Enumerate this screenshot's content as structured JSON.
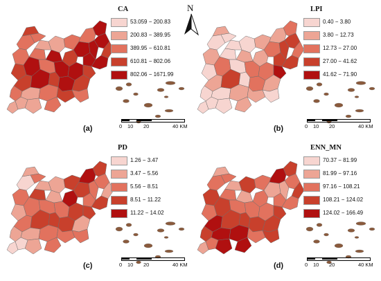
{
  "north_arrow": {
    "label": "N",
    "icon": "north-arrow-icon"
  },
  "scale_labels": [
    "0",
    "10",
    "20",
    "40 KM"
  ],
  "outline_color": "#6e6e6e",
  "panels": [
    {
      "id": "a",
      "label": "(a)",
      "metric": "CA",
      "classes": [
        {
          "range": "53.059 − 200.83",
          "color": "#f7d5d0"
        },
        {
          "range": "200.83 − 389.95",
          "color": "#eda595"
        },
        {
          "range": "389.95 − 610.81",
          "color": "#e2725e"
        },
        {
          "range": "610.81 − 802.06",
          "color": "#c8402c"
        },
        {
          "range": "802.06 − 1671.99",
          "color": "#b01010"
        }
      ]
    },
    {
      "id": "b",
      "label": "(b)",
      "metric": "LPI",
      "classes": [
        {
          "range": "0.40 − 3.80",
          "color": "#f7d5d0"
        },
        {
          "range": "3.80 − 12.73",
          "color": "#eda595"
        },
        {
          "range": "12.73 − 27.00",
          "color": "#e2725e"
        },
        {
          "range": "27.00 − 41.62",
          "color": "#c8402c"
        },
        {
          "range": "41.62 − 71.90",
          "color": "#b01010"
        }
      ]
    },
    {
      "id": "c",
      "label": "(c)",
      "metric": "PD",
      "classes": [
        {
          "range": "1.26 − 3.47",
          "color": "#f7d5d0"
        },
        {
          "range": "3.47 − 5.56",
          "color": "#eda595"
        },
        {
          "range": "5.56 − 8.51",
          "color": "#e2725e"
        },
        {
          "range": "8.51 − 11.22",
          "color": "#c8402c"
        },
        {
          "range": "11.22 − 14.02",
          "color": "#b01010"
        }
      ]
    },
    {
      "id": "d",
      "label": "(d)",
      "metric": "ENN_MN",
      "classes": [
        {
          "range": "70.37 − 81.99",
          "color": "#f7d5d0"
        },
        {
          "range": "81.99 − 97.16",
          "color": "#eda595"
        },
        {
          "range": "97.16 − 108.21",
          "color": "#e2725e"
        },
        {
          "range": "108.21 − 124.02",
          "color": "#c8402c"
        },
        {
          "range": "124.02 − 166.49",
          "color": "#b01010"
        }
      ]
    }
  ]
}
